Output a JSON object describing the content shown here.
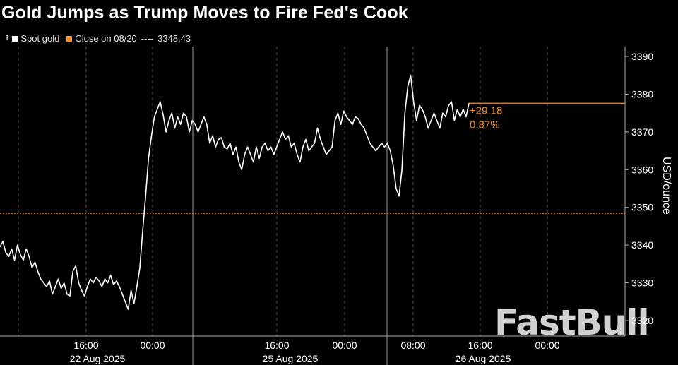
{
  "headline": "Gold Jumps as Trump Moves to Fire Fed's Cook",
  "legend": {
    "control_glyph": "⇞",
    "series_label": "Spot gold",
    "series_color": "#ffffff",
    "close_label": "Close on 08/20",
    "close_dashes": "----",
    "close_value": "3348.43",
    "close_color": "#f0932b"
  },
  "watermark": "FastBull",
  "chart_data": {
    "type": "line",
    "title": "",
    "xlabel": "",
    "ylabel": "USD/ounce",
    "ylim": [
      3317,
      3395
    ],
    "yticks": [
      3320,
      3330,
      3340,
      3350,
      3360,
      3370,
      3380,
      3390
    ],
    "x_day_labels": [
      "22 Aug 2025",
      "25 Aug 2025",
      "26 Aug 2025"
    ],
    "x_time_labels": [
      "16:00",
      "00:00",
      "16:00",
      "00:00",
      "08:00",
      "16:00",
      "00:00"
    ],
    "reference_line": {
      "label": "Close on 08/20",
      "value": 3348.43
    },
    "last_value_line": 3377.6,
    "annotation": {
      "change": "+29.18",
      "percent": "0.87%"
    },
    "series": [
      {
        "name": "Spot gold",
        "values": [
          3339.5,
          3341.0,
          3338.0,
          3337.0,
          3339.0,
          3336.0,
          3340.0,
          3337.5,
          3336.0,
          3339.0,
          3337.0,
          3334.0,
          3335.5,
          3333.0,
          3331.0,
          3330.0,
          3329.0,
          3330.5,
          3327.0,
          3329.0,
          3331.0,
          3328.5,
          3330.0,
          3327.0,
          3326.5,
          3333.0,
          3334.5,
          3330.0,
          3328.0,
          3326.5,
          3329.0,
          3331.0,
          3330.0,
          3331.5,
          3330.5,
          3329.0,
          3331.0,
          3330.0,
          3332.0,
          3329.5,
          3330.5,
          3329.0,
          3327.0,
          3325.0,
          3323.0,
          3328.0,
          3324.5,
          3329.0,
          3334.0,
          3344.0,
          3353.0,
          3363.0,
          3369.0,
          3374.0,
          3376.0,
          3378.0,
          3374.5,
          3370.0,
          3373.0,
          3375.0,
          3371.0,
          3374.0,
          3372.0,
          3375.0,
          3374.0,
          3370.0,
          3373.0,
          3372.0,
          3370.0,
          3372.0,
          3374.0,
          3372.0,
          3367.0,
          3369.0,
          3366.0,
          3368.0,
          3368.5,
          3366.0,
          3365.5,
          3367.0,
          3364.0,
          3366.0,
          3362.0,
          3360.0,
          3364.0,
          3366.0,
          3364.0,
          3362.0,
          3366.0,
          3363.0,
          3366.0,
          3367.0,
          3365.0,
          3366.0,
          3364.0,
          3366.0,
          3368.0,
          3370.0,
          3368.0,
          3369.0,
          3366.0,
          3367.0,
          3364.0,
          3362.0,
          3366.0,
          3368.0,
          3365.0,
          3366.0,
          3367.0,
          3371.0,
          3368.0,
          3366.0,
          3364.0,
          3365.0,
          3366.0,
          3373.0,
          3375.0,
          3372.0,
          3375.5,
          3374.0,
          3373.0,
          3372.0,
          3374.0,
          3373.5,
          3372.0,
          3371.0,
          3369.0,
          3367.0,
          3366.0,
          3365.0,
          3366.0,
          3367.0,
          3366.0,
          3367.0,
          3365.0,
          3361.0,
          3355.0,
          3353.0,
          3360.0,
          3375.0,
          3382.0,
          3385.0,
          3378.0,
          3373.0,
          3377.0,
          3376.0,
          3374.0,
          3371.0,
          3373.0,
          3375.0,
          3373.0,
          3371.0,
          3375.0,
          3374.0,
          3377.0,
          3378.0,
          3373.0,
          3376.0,
          3374.0,
          3376.0,
          3374.0,
          3377.6
        ]
      }
    ]
  }
}
